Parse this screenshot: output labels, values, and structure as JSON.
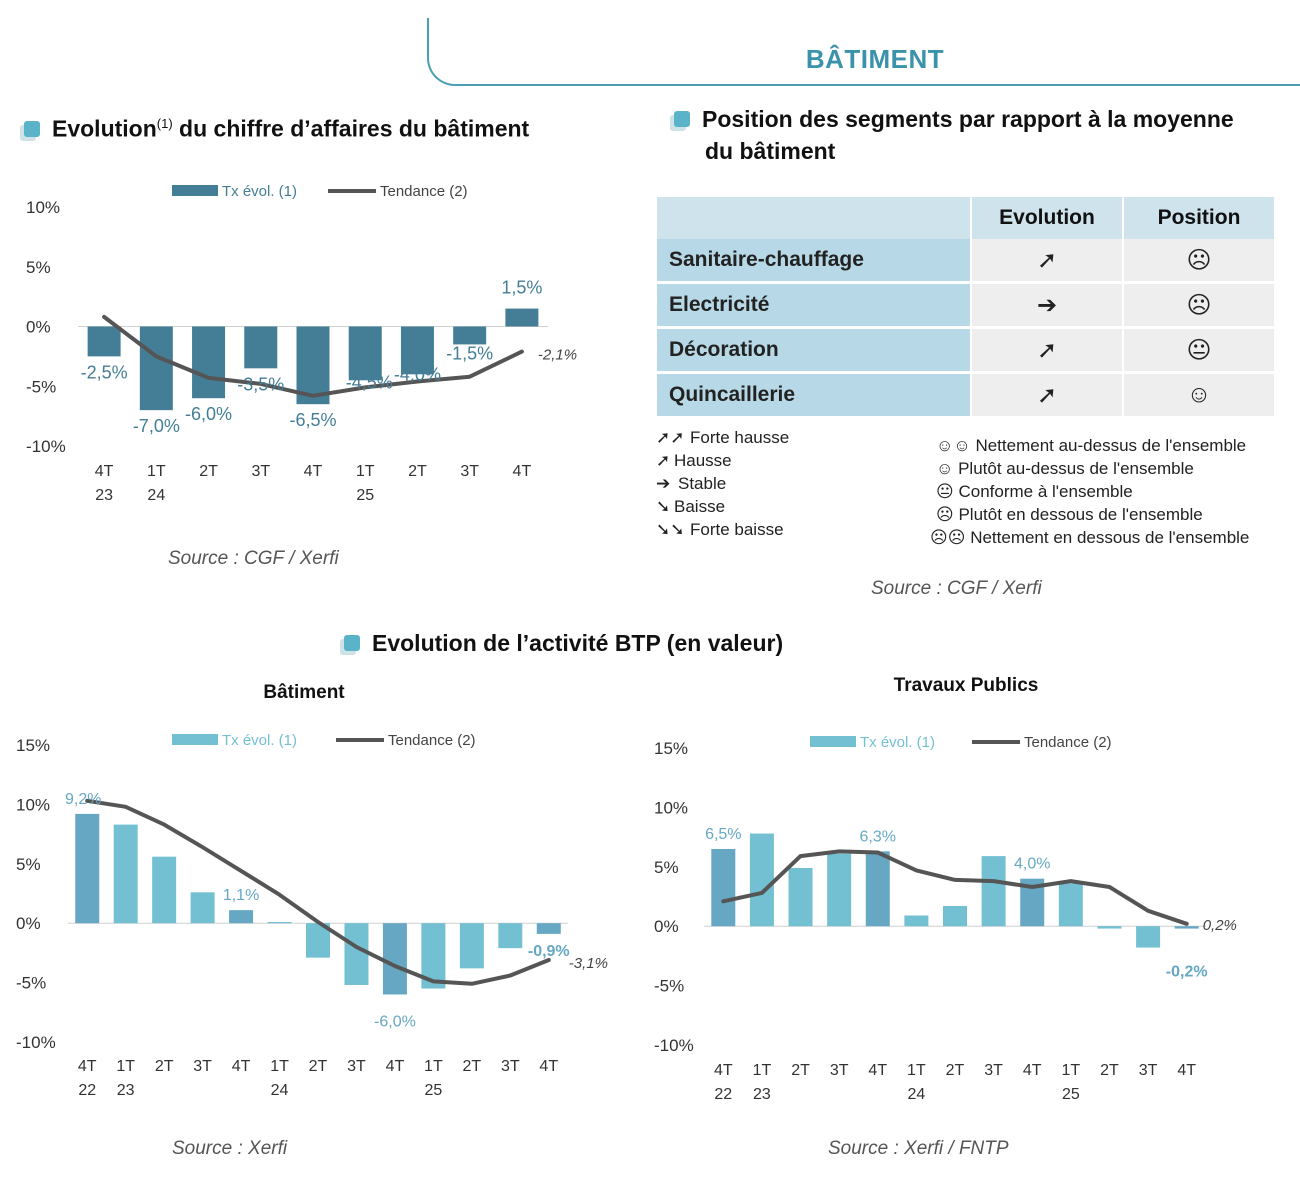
{
  "header": {
    "title": "BÂTIMENT"
  },
  "section1": {
    "title_pre": "Evolution",
    "title_sup": "(1)",
    "title_post": " du chiffre d’affaires du bâtiment",
    "source": "Source : CGF / Xerfi"
  },
  "section2": {
    "title_line1": "Position des segments par rapport à la moyenne",
    "title_line2": "du  bâtiment",
    "col_evolution": "Evolution",
    "col_position": "Position",
    "rows": [
      {
        "name": "Sanitaire-chauffage",
        "evolution": "➚",
        "position": "☹"
      },
      {
        "name": "Electricité",
        "evolution": "➔",
        "position": "☹"
      },
      {
        "name": "Décoration",
        "evolution": "➚",
        "position": "😐"
      },
      {
        "name": "Quincaillerie",
        "evolution": "➚",
        "position": "☺"
      }
    ],
    "legend_evolution": [
      {
        "sym": "➚➚",
        "label": "Forte hausse"
      },
      {
        "sym": "➚",
        "label": "Hausse"
      },
      {
        "sym": "➔",
        "label": "Stable"
      },
      {
        "sym": "➘",
        "label": "Baisse"
      },
      {
        "sym": "➘➘",
        "label": "Forte baisse"
      }
    ],
    "legend_position": [
      {
        "sym": "☺☺",
        "label": "Nettement au-dessus de l'ensemble"
      },
      {
        "sym": "☺",
        "label": "Plutôt au-dessus de l'ensemble"
      },
      {
        "sym": "😐",
        "label": "Conforme à l'ensemble"
      },
      {
        "sym": "☹",
        "label": "Plutôt en dessous de l'ensemble"
      },
      {
        "sym": "☹☹",
        "label": "Nettement en dessous de l'ensemble"
      }
    ],
    "source": "Source : CGF / Xerfi"
  },
  "section3": {
    "title": "Evolution de l’activité BTP (en valeur)"
  },
  "colors": {
    "bar_dark": "#447e96",
    "bar_light": "#74c0d3",
    "bar_mid": "#66a8c4",
    "trend": "#555555",
    "accent": "#3a93aa"
  },
  "chart_data": [
    {
      "id": "ca-batiment",
      "type": "bar",
      "title": "",
      "categories": [
        "4T 23",
        "1T 24",
        "2T",
        "3T",
        "4T",
        "1T 25",
        "2T",
        "3T",
        "4T"
      ],
      "series": [
        {
          "name": "Tx évol. (1)",
          "type": "bar",
          "values": [
            -2.5,
            -7.0,
            -6.0,
            -3.5,
            -6.5,
            -4.5,
            -4.0,
            -1.5,
            1.5
          ]
        },
        {
          "name": "Tendance (2)",
          "type": "line",
          "values": [
            0.8,
            -2.5,
            -4.3,
            -4.8,
            -5.8,
            -5.1,
            -4.6,
            -4.2,
            -2.1
          ]
        }
      ],
      "value_labels": [
        "-2,5%",
        "-7,0%",
        "-6,0%",
        "-3,5%",
        "-6,5%",
        "-4,5%",
        "-4,0%",
        "-1,5%",
        "1,5%"
      ],
      "trend_end_label": "-2,1%",
      "ylim": [
        -10,
        10
      ],
      "yticks": [
        "10%",
        "5%",
        "0%",
        "-5%",
        "-10%"
      ],
      "xticks_top": [
        "4T",
        "1T",
        "2T",
        "3T",
        "4T",
        "1T",
        "2T",
        "3T",
        "4T"
      ],
      "xticks_bottom": [
        "23",
        "24",
        "",
        "",
        "",
        "25",
        "",
        "",
        ""
      ],
      "legend": "top",
      "source": "Source : CGF / Xerfi"
    },
    {
      "id": "btp-batiment",
      "type": "bar",
      "title": "Bâtiment",
      "categories": [
        "4T 22",
        "1T 23",
        "2T",
        "3T",
        "4T",
        "1T 24",
        "2T",
        "3T",
        "4T",
        "1T 25",
        "2T",
        "3T",
        "4T"
      ],
      "series": [
        {
          "name": "Tx évol. (1)",
          "type": "bar",
          "values": [
            9.2,
            8.3,
            5.6,
            2.6,
            1.1,
            0.1,
            -2.9,
            -5.2,
            -6.0,
            -5.5,
            -3.8,
            -2.1,
            -0.9
          ]
        },
        {
          "name": "Tendance (2)",
          "type": "line",
          "values": [
            10.3,
            9.8,
            8.3,
            6.4,
            4.4,
            2.4,
            0.1,
            -2.0,
            -3.6,
            -4.9,
            -5.1,
            -4.4,
            -3.1
          ]
        }
      ],
      "value_labels": [
        "9,2%",
        "",
        "",
        "",
        "1,1%",
        "",
        "",
        "",
        "-6,0%",
        "",
        "",
        "",
        "-0,9%"
      ],
      "trend_end_label": "-3,1%",
      "ylim": [
        -10,
        15
      ],
      "yticks": [
        "15%",
        "10%",
        "5%",
        "0%",
        "-5%",
        "-10%"
      ],
      "xticks_top": [
        "4T",
        "1T",
        "2T",
        "3T",
        "4T",
        "1T",
        "2T",
        "3T",
        "4T",
        "1T",
        "2T",
        "3T",
        "4T"
      ],
      "xticks_bottom": [
        "22",
        "23",
        "",
        "",
        "",
        "24",
        "",
        "",
        "",
        "25",
        "",
        "",
        ""
      ],
      "legend": "top",
      "source": "Source : Xerfi"
    },
    {
      "id": "btp-tp",
      "type": "bar",
      "title": "Travaux Publics",
      "categories": [
        "4T 22",
        "1T 23",
        "2T",
        "3T",
        "4T",
        "1T 24",
        "2T",
        "3T",
        "4T",
        "1T 25",
        "2T",
        "3T",
        "4T"
      ],
      "series": [
        {
          "name": "Tx évol. (1)",
          "type": "bar",
          "values": [
            6.5,
            7.8,
            4.9,
            6.1,
            6.3,
            0.9,
            1.7,
            5.9,
            4.0,
            3.6,
            -0.2,
            -1.8,
            -0.2
          ]
        },
        {
          "name": "Tendance (2)",
          "type": "line",
          "values": [
            2.1,
            2.8,
            5.9,
            6.3,
            6.2,
            4.7,
            3.9,
            3.8,
            3.3,
            3.8,
            3.3,
            1.3,
            0.2
          ]
        }
      ],
      "value_labels": [
        "6,5%",
        "",
        "",
        "",
        "6,3%",
        "",
        "",
        "",
        "4,0%",
        "",
        "",
        "",
        "-0,2%"
      ],
      "trend_end_label": "0,2%",
      "ylim": [
        -10,
        15
      ],
      "yticks": [
        "15%",
        "10%",
        "5%",
        "0%",
        "-5%",
        "-10%"
      ],
      "xticks_top": [
        "4T",
        "1T",
        "2T",
        "3T",
        "4T",
        "1T",
        "2T",
        "3T",
        "4T",
        "1T",
        "2T",
        "3T",
        "4T"
      ],
      "xticks_bottom": [
        "22",
        "23",
        "",
        "",
        "",
        "24",
        "",
        "",
        "",
        "25",
        "",
        "",
        ""
      ],
      "legend": "top",
      "source": "Source : Xerfi / FNTP"
    }
  ]
}
